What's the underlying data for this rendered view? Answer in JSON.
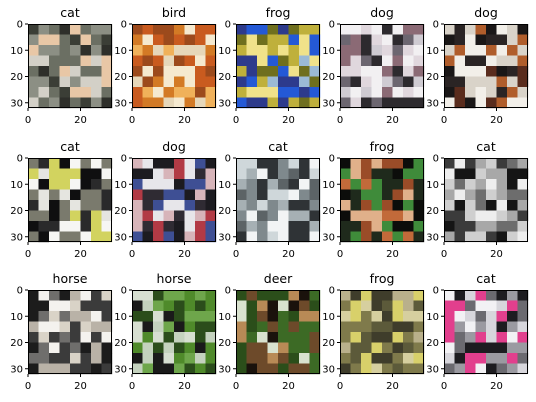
{
  "figure": {
    "background": "#ffffff",
    "rows": 3,
    "cols": 5,
    "axis": {
      "xticks": [
        "0",
        "20"
      ],
      "yticks": [
        "0",
        "10",
        "20",
        "30"
      ]
    },
    "panels": [
      {
        "label": "cat",
        "colors": [
          "#2e2f2a",
          "#6b6f63",
          "#e8c7a6",
          "#8c8f84",
          "#3b3e36",
          "#d3d0c7"
        ]
      },
      {
        "label": "bird",
        "colors": [
          "#d37a25",
          "#f0b15a",
          "#c95b1f",
          "#e6d7b9",
          "#9c4a1c",
          "#f5e9cf"
        ]
      },
      {
        "label": "frog",
        "colors": [
          "#2459d6",
          "#bfb03b",
          "#6f6f1e",
          "#f0e28a",
          "#2d3a8c",
          "#9bbad6"
        ]
      },
      {
        "label": "dog",
        "colors": [
          "#8b6a75",
          "#cfcbd2",
          "#2d2a2e",
          "#e0d7dd",
          "#6c6670",
          "#f2f0f2"
        ]
      },
      {
        "label": "dog",
        "colors": [
          "#1a1717",
          "#5a2c1d",
          "#f2efe9",
          "#b05d2b",
          "#2a2424",
          "#d9d3c9"
        ]
      },
      {
        "label": "cat",
        "colors": [
          "#0f0f10",
          "#e5e5e0",
          "#d2d35f",
          "#2a2a2b",
          "#f6f6f3",
          "#7a7a6d"
        ]
      },
      {
        "label": "dog",
        "colors": [
          "#2f2b33",
          "#b23a45",
          "#e7e6ea",
          "#3e4f94",
          "#1c1b20",
          "#d7b4b9"
        ]
      },
      {
        "label": "cat",
        "colors": [
          "#cfd7da",
          "#2f3336",
          "#a6b0b4",
          "#f2f4f5",
          "#5c6366",
          "#7f898d"
        ]
      },
      {
        "label": "frog",
        "colors": [
          "#0c0d0b",
          "#c26a3a",
          "#3f8b3a",
          "#9a4c28",
          "#1f2a1c",
          "#e0b08a"
        ]
      },
      {
        "label": "cat",
        "colors": [
          "#3b3b3b",
          "#cfcfcf",
          "#a8a8a8",
          "#151515",
          "#eeeeee",
          "#6d6d6d"
        ]
      },
      {
        "label": "horse",
        "colors": [
          "#1c1c1c",
          "#d9d3c7",
          "#6f6e6c",
          "#f4f2ee",
          "#3b3b3b",
          "#b9b2a7"
        ]
      },
      {
        "label": "horse",
        "colors": [
          "#4f8a2a",
          "#d7dfd1",
          "#1a1a1a",
          "#6ea64b",
          "#c4d2be",
          "#2b4d1b"
        ]
      },
      {
        "label": "deer",
        "colors": [
          "#6d4a2a",
          "#2b4e1a",
          "#1a120c",
          "#b88a56",
          "#d9e2cf",
          "#3c6a25"
        ]
      },
      {
        "label": "frog",
        "colors": [
          "#7f7a4b",
          "#b9b08b",
          "#5c5a3a",
          "#d6cf9f",
          "#d8d06a",
          "#3f3d2b"
        ]
      },
      {
        "label": "cat",
        "colors": [
          "#d7d6dc",
          "#f2f1f4",
          "#e23f8d",
          "#6b6a70",
          "#1d1c20",
          "#9b9aa1"
        ]
      }
    ]
  }
}
